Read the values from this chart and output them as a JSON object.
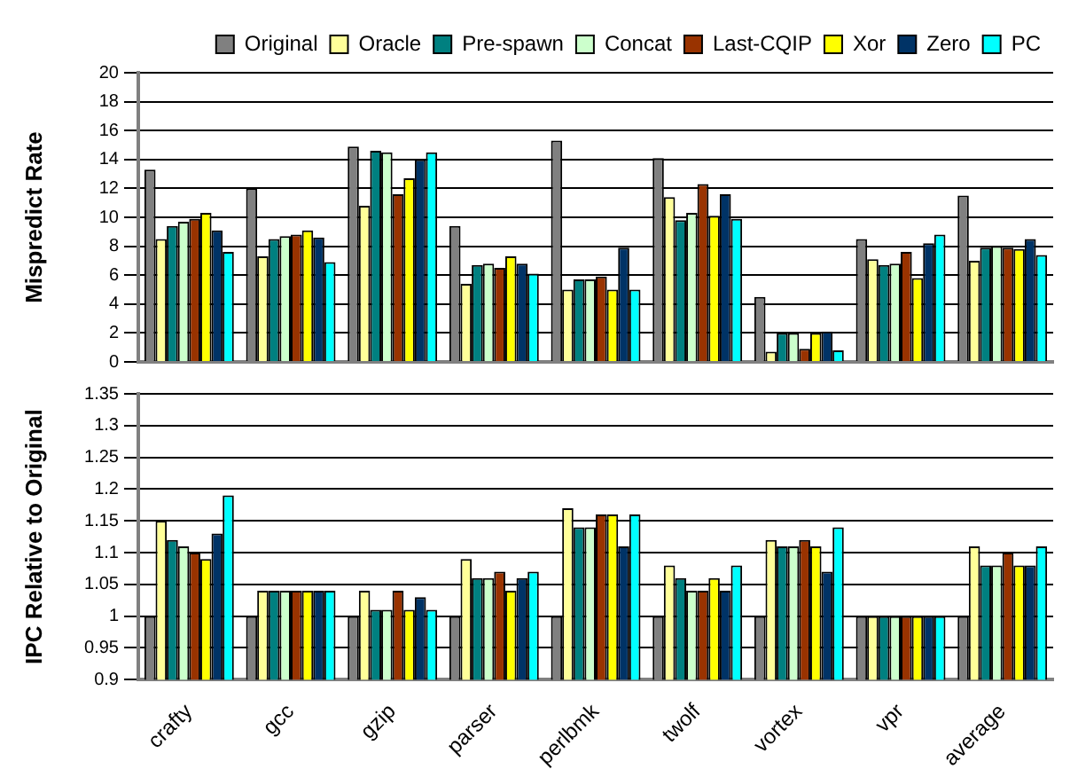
{
  "chart_data": [
    {
      "type": "bar",
      "ylabel": "Mispredict Rate",
      "categories": [
        null,
        null,
        null,
        null,
        null,
        null,
        null,
        null,
        null
      ],
      "ylim": [
        0,
        20
      ],
      "yticks": [
        0,
        2,
        4,
        6,
        8,
        10,
        12,
        14,
        16,
        18,
        20
      ],
      "grid": "y",
      "legend": "top right",
      "tick_labels": "y",
      "series": [
        {
          "name": "Original",
          "color": "#808080",
          "values": [
            13.3,
            12.0,
            14.9,
            9.4,
            15.3,
            14.1,
            4.5,
            8.5,
            11.5
          ]
        },
        {
          "name": "Oracle",
          "color": "#ffff99",
          "values": [
            8.5,
            7.3,
            10.8,
            5.4,
            5.0,
            11.4,
            0.7,
            7.1,
            7.0
          ]
        },
        {
          "name": "Pre-spawn",
          "color": "#008080",
          "values": [
            9.4,
            8.5,
            14.6,
            6.7,
            5.7,
            9.8,
            2.0,
            6.7,
            7.9
          ]
        },
        {
          "name": "Concat",
          "color": "#ccffcc",
          "values": [
            9.7,
            8.7,
            14.5,
            6.8,
            5.7,
            10.3,
            2.0,
            6.8,
            8.0
          ]
        },
        {
          "name": "Last-CQIP",
          "color": "#993300",
          "values": [
            9.9,
            8.8,
            11.6,
            6.5,
            5.9,
            12.3,
            0.9,
            7.6,
            7.9
          ]
        },
        {
          "name": "Xor",
          "color": "#ffff00",
          "values": [
            10.3,
            9.1,
            12.7,
            7.3,
            5.0,
            10.1,
            2.0,
            5.8,
            7.8
          ]
        },
        {
          "name": "Zero",
          "color": "#003366",
          "values": [
            9.1,
            8.6,
            14.0,
            6.8,
            7.9,
            11.6,
            2.1,
            8.2,
            8.5
          ]
        },
        {
          "name": "PC",
          "color": "#00ffff",
          "values": [
            7.6,
            6.9,
            14.5,
            6.1,
            5.0,
            9.9,
            0.8,
            8.8,
            7.4
          ]
        }
      ]
    },
    {
      "type": "bar",
      "ylabel": "IPC Relative to Original",
      "categories": [
        "crafty",
        "gcc",
        "gzip",
        "parser",
        "perlbmk",
        "twolf",
        "vortex",
        "vpr",
        "average"
      ],
      "ylim": [
        0.9,
        1.35
      ],
      "yticks": [
        0.9,
        0.95,
        1,
        1.05,
        1.1,
        1.15,
        1.2,
        1.25,
        1.3,
        1.35
      ],
      "grid": "y",
      "series": [
        {
          "color": "#808080",
          "values": [
            1,
            1,
            1,
            1,
            1,
            1,
            1,
            1,
            1
          ]
        },
        {
          "color": "#ffff99",
          "values": [
            1.15,
            1.04,
            1.04,
            1.09,
            1.17,
            1.08,
            1.12,
            1,
            1.11
          ]
        },
        {
          "color": "#008080",
          "values": [
            1.12,
            1.04,
            1.01,
            1.06,
            1.14,
            1.06,
            1.11,
            1,
            1.08
          ]
        },
        {
          "color": "#ccffcc",
          "values": [
            1.11,
            1.04,
            1.01,
            1.06,
            1.14,
            1.04,
            1.11,
            1,
            1.08
          ]
        },
        {
          "color": "#993300",
          "values": [
            1.1,
            1.04,
            1.04,
            1.07,
            1.16,
            1.04,
            1.12,
            1,
            1.1
          ]
        },
        {
          "color": "#ffff00",
          "values": [
            1.09,
            1.04,
            1.01,
            1.04,
            1.16,
            1.06,
            1.11,
            1,
            1.08
          ]
        },
        {
          "color": "#003366",
          "values": [
            1.13,
            1.04,
            1.03,
            1.06,
            1.11,
            1.04,
            1.07,
            1,
            1.08
          ]
        },
        {
          "color": "#00ffff",
          "values": [
            1.19,
            1.04,
            1.01,
            1.07,
            1.16,
            1.08,
            1.14,
            1,
            1.11
          ]
        }
      ]
    }
  ]
}
